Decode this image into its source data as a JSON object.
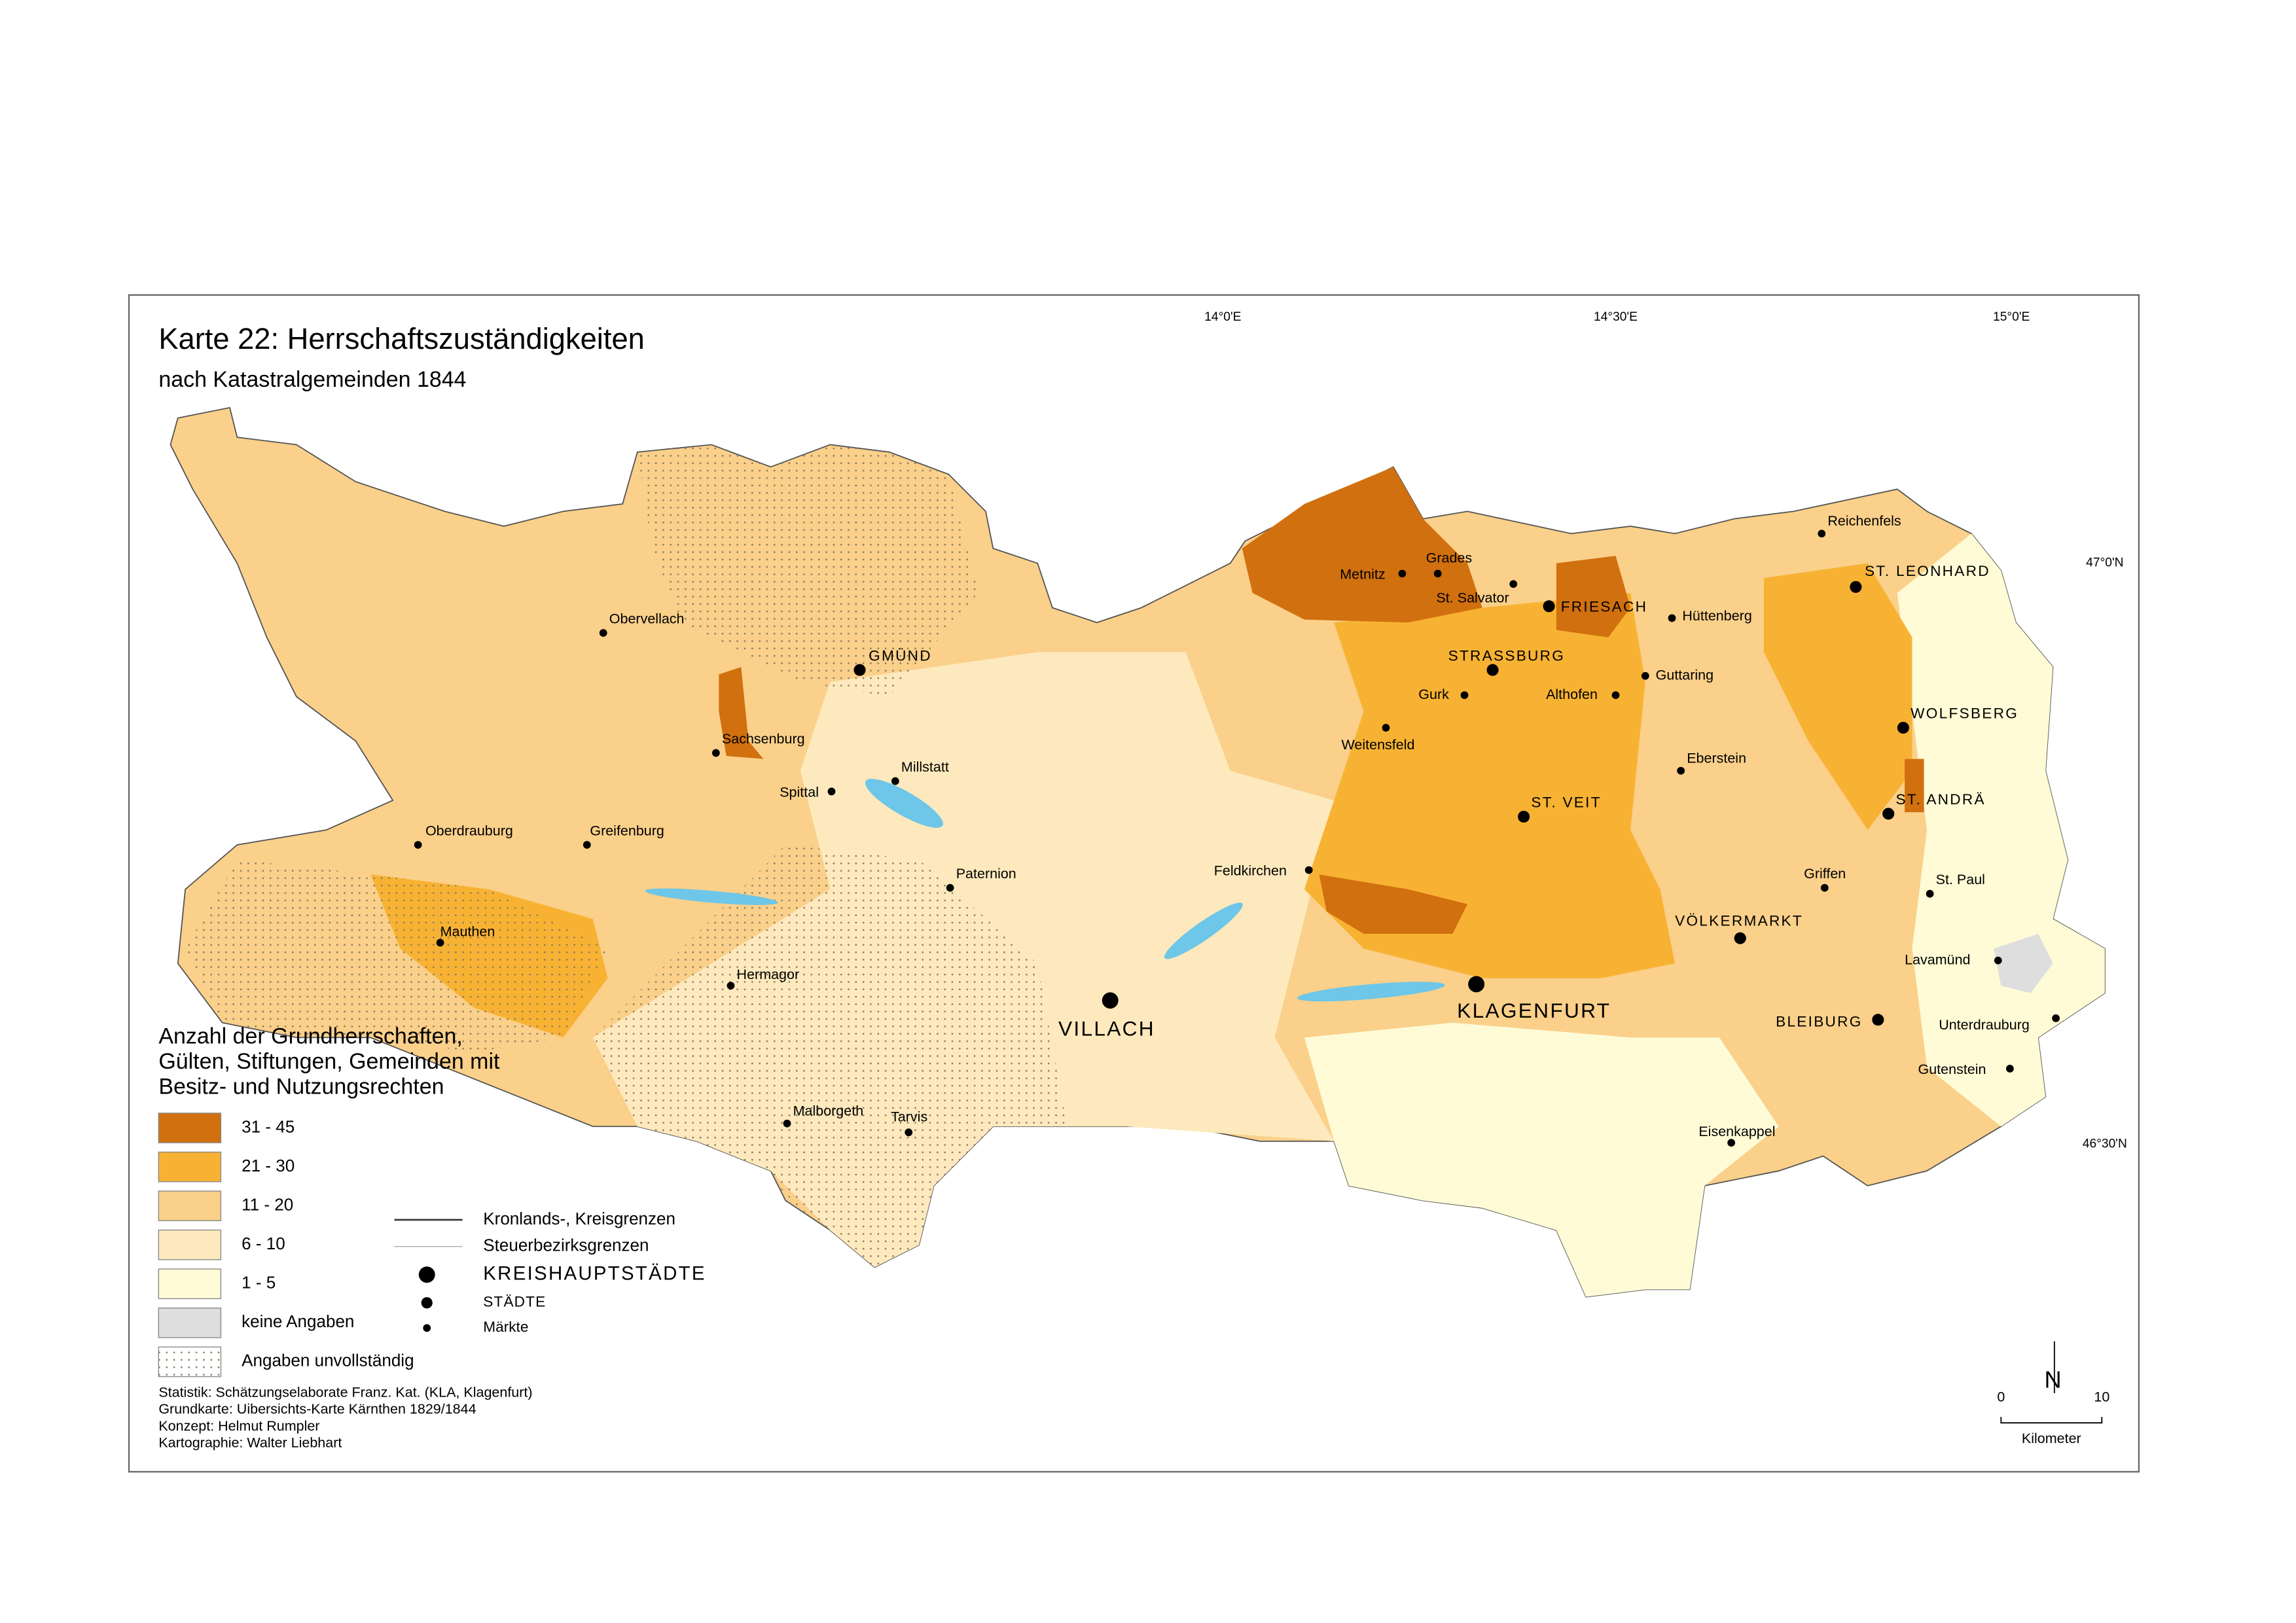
{
  "header": {
    "title": "Karte 22: Herrschaftszuständigkeiten",
    "subtitle": "nach Katastralgemeinden 1844"
  },
  "graticule": {
    "longitudes": [
      "14°0'E",
      "14°30'E",
      "15°0'E"
    ],
    "latitudes": [
      "47°0'N",
      "46°30'N"
    ]
  },
  "places": [
    "Obervellach",
    "GMÜND",
    "Sachsenburg",
    "Millstatt",
    "Spittal",
    "Oberdrauburg",
    "Greifenburg",
    "Paternion",
    "Mauthen",
    "Hermagor",
    "VILLACH",
    "Malborgeth",
    "Tarvis",
    "Feldkirchen",
    "Metnitz",
    "Grades",
    "St. Salvator",
    "FRIESACH",
    "Hüttenberg",
    "STRASSBURG",
    "Gurk",
    "Althofen",
    "Guttaring",
    "Weitensfeld",
    "Eberstein",
    "ST. VEIT",
    "KLAGENFURT",
    "VÖLKERMARKT",
    "Griffen",
    "Eisenkappel",
    "Reichenfels",
    "ST. LEONHARD",
    "WOLFSBERG",
    "ST. ANDRÄ",
    "St. Paul",
    "Lavamünd",
    "BLEIBURG",
    "Unterdrauburg",
    "Gutenstein"
  ],
  "legend": {
    "title": [
      "Anzahl der Grundherrschaften,",
      "Gülten, Stiftungen, Gemeinden mit",
      "Besitz- und Nutzungsrechten"
    ],
    "classes": [
      {
        "label": "31 - 45",
        "color": "#d1700f"
      },
      {
        "label": "21 - 30",
        "color": "#f8b233"
      },
      {
        "label": "11 - 20",
        "color": "#fad08a"
      },
      {
        "label": "6 - 10",
        "color": "#fde9bd"
      },
      {
        "label": "1 - 5",
        "color": "#fefbd6"
      },
      {
        "label": "keine Angaben",
        "color": "#dedede"
      },
      {
        "label": "Angaben unvollständig",
        "pattern": "dots"
      }
    ],
    "lines": [
      "Kronlands-, Kreisgrenzen",
      "Steuerbezirksgrenzen"
    ],
    "symbols": [
      "KREISHAUPTSTÄDTE",
      "STÄDTE",
      "Märkte"
    ]
  },
  "credits": [
    "Statistik: Schätzungselaborate Franz. Kat. (KLA, Klagenfurt)",
    "Grundkarte: Uibersichts-Karte Kärnthen 1829/1844",
    "Konzept: Helmut Rumpler",
    "Kartographie: Walter Liebhart"
  ],
  "scale": {
    "ticks": [
      0,
      10
    ],
    "unit": "Kilometer"
  },
  "north": "N"
}
